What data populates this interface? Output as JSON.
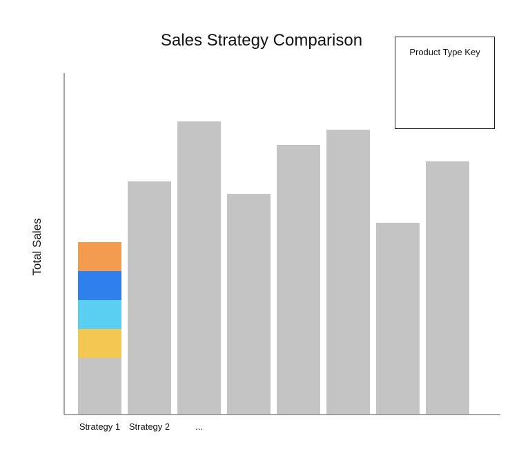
{
  "chart_data": {
    "type": "bar",
    "title": "Sales Strategy Comparison",
    "xlabel": "",
    "ylabel": "Total Sales",
    "categories": [
      "Strategy 1",
      "Strategy 2",
      "...",
      "",
      "",
      "",
      "",
      ""
    ],
    "values": [
      250,
      338,
      425,
      320,
      391,
      413,
      278,
      367
    ],
    "ylim": [
      0,
      500
    ],
    "grid": false,
    "bar_color": "#c4c4c4",
    "stacked_segments": {
      "category_index": 0,
      "base": 82,
      "segments": [
        {
          "value": 42,
          "color": "#f4c752"
        },
        {
          "value": 42,
          "color": "#5bcff2"
        },
        {
          "value": 42,
          "color": "#2f80ed"
        },
        {
          "value": 42,
          "color": "#f39c4f"
        }
      ]
    },
    "legend": {
      "title": "Product Type Key",
      "position": "top-right",
      "entries": []
    },
    "axis_color": "#888888"
  }
}
